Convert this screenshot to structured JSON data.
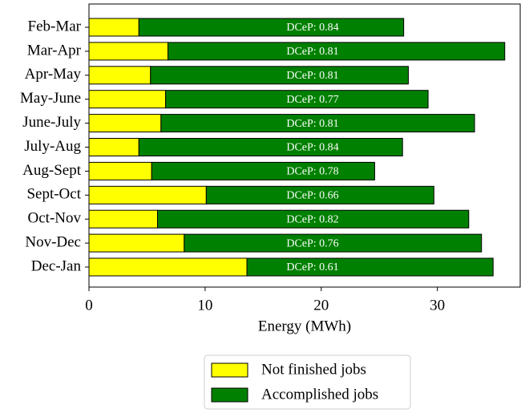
{
  "chart_data": {
    "type": "stacked_barh",
    "categories": [
      "Feb-Mar",
      "Mar-Apr",
      "Apr-May",
      "May-June",
      "June-July",
      "July-Aug",
      "Aug-Sept",
      "Sept-Oct",
      "Oct-Nov",
      "Nov-Dec",
      "Dec-Jan"
    ],
    "series": [
      {
        "name": "Not finished jobs",
        "color": "#ffff00",
        "values": [
          4.3,
          6.8,
          5.3,
          6.6,
          6.2,
          4.3,
          5.4,
          10.1,
          5.9,
          8.2,
          13.6
        ]
      },
      {
        "name": "Accomplished jobs",
        "color": "#008000",
        "values": [
          22.8,
          29.0,
          22.2,
          22.6,
          27.0,
          22.7,
          19.2,
          19.6,
          26.8,
          25.6,
          21.2
        ]
      }
    ],
    "bar_labels": [
      "DCeP: 0.84",
      "DCeP: 0.81",
      "DCeP: 0.81",
      "DCeP: 0.77",
      "DCeP: 0.81",
      "DCeP: 0.84",
      "DCeP: 0.78",
      "DCeP: 0.66",
      "DCeP: 0.82",
      "DCeP: 0.76",
      "DCeP: 0.61"
    ],
    "xlabel": "Energy (MWh)",
    "xlim": [
      0,
      37.2
    ],
    "xticks": [
      0,
      10,
      20,
      30
    ],
    "legend": "below"
  }
}
